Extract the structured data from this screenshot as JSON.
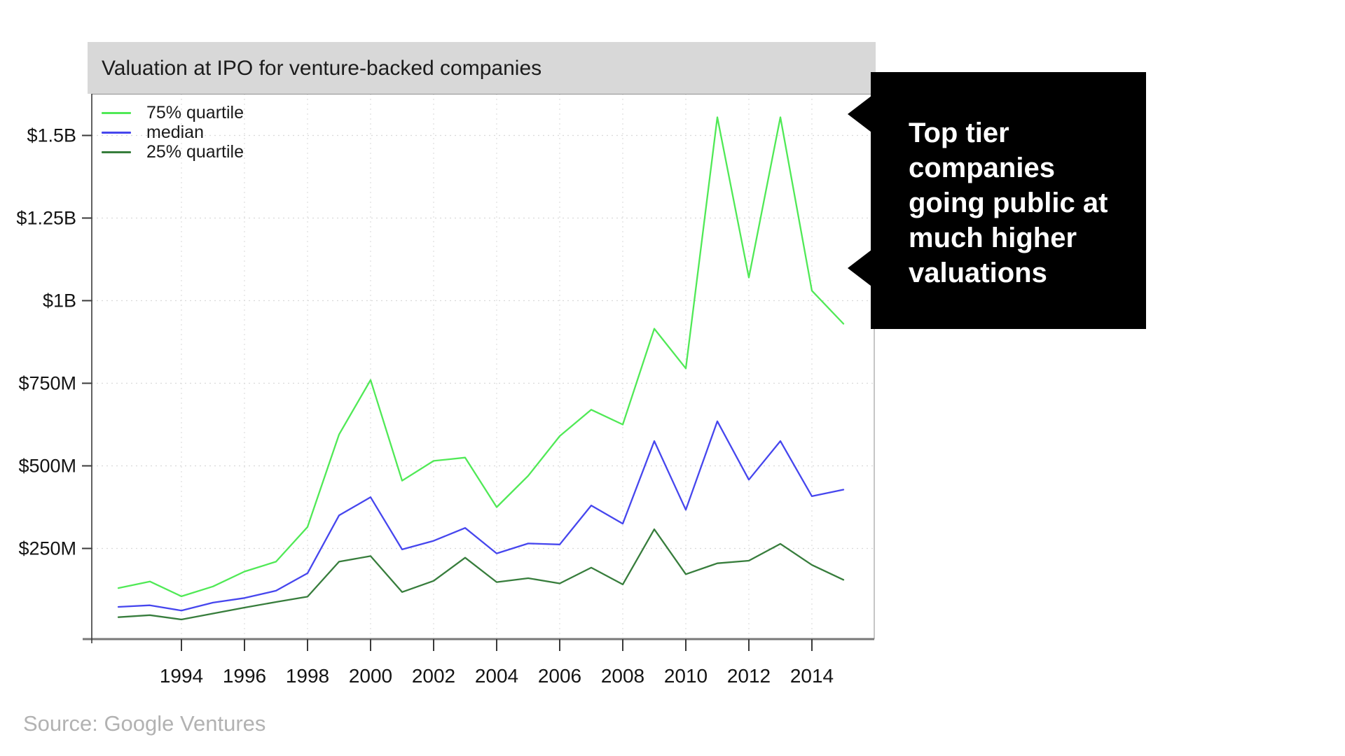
{
  "header": {
    "title": "Valuation at IPO for venture-backed companies"
  },
  "legend": {
    "items": [
      {
        "label": "75% quartile",
        "color": "#50e956"
      },
      {
        "label": "median",
        "color": "#4646ee"
      },
      {
        "label": "25% quartile",
        "color": "#377d3c"
      }
    ]
  },
  "callout": {
    "lines": [
      "Top tier",
      "companies",
      "going public at",
      "much higher",
      "valuations"
    ],
    "bg": "#000000",
    "text_color": "#ffffff"
  },
  "source": {
    "text": "Source: Google Ventures"
  },
  "chart_data": {
    "type": "line",
    "title": "Valuation at IPO for venture-backed companies",
    "units": "$M",
    "x": [
      1992,
      1993,
      1994,
      1995,
      1996,
      1997,
      1998,
      1999,
      2000,
      2001,
      2002,
      2003,
      2004,
      2005,
      2006,
      2007,
      2008,
      2009,
      2010,
      2011,
      2012,
      2013,
      2014,
      2015
    ],
    "series": [
      {
        "name": "75% quartile",
        "color": "#50e956",
        "values": [
          130,
          150,
          105,
          135,
          180,
          210,
          315,
          595,
          760,
          455,
          515,
          525,
          375,
          470,
          590,
          670,
          625,
          915,
          795,
          1555,
          1070,
          1555,
          1030,
          930
        ]
      },
      {
        "name": "median",
        "color": "#4646ee",
        "values": [
          73,
          78,
          62,
          86,
          100,
          122,
          175,
          350,
          405,
          247,
          273,
          312,
          235,
          265,
          262,
          380,
          325,
          575,
          367,
          635,
          458,
          575,
          408,
          428
        ]
      },
      {
        "name": "25% quartile",
        "color": "#377d3c",
        "values": [
          42,
          48,
          35,
          53,
          71,
          88,
          104,
          210,
          227,
          118,
          152,
          222,
          148,
          160,
          144,
          192,
          141,
          308,
          172,
          205,
          213,
          264,
          200,
          155
        ]
      }
    ],
    "y_ticks": [
      {
        "value": 250,
        "label": "$250M"
      },
      {
        "value": 500,
        "label": "$500M"
      },
      {
        "value": 750,
        "label": "$750M"
      },
      {
        "value": 1000,
        "label": "$1B"
      },
      {
        "value": 1250,
        "label": "$1.25B"
      },
      {
        "value": 1500,
        "label": "$1.5B"
      }
    ],
    "x_ticks": [
      1994,
      1996,
      1998,
      2000,
      2002,
      2004,
      2006,
      2008,
      2010,
      2012,
      2014
    ],
    "xlim": [
      1991.2,
      2016.0
    ],
    "ylim": [
      0,
      1630
    ],
    "grid": "dotted",
    "legend_position": "top-left"
  }
}
